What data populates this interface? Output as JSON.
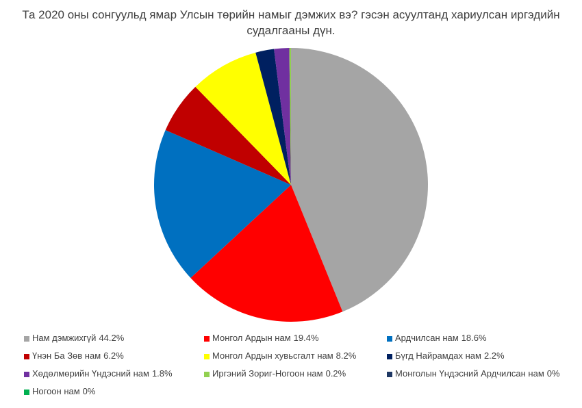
{
  "chart_data": {
    "type": "pie",
    "title": "Та 2020 оны сонгуульд ямар Улсын төрийн намыг дэмжих вэ? гэсэн асуултанд хариулсан иргэдийн судалгааны дүн.",
    "categories": [
      "Нам дэмжихгүй",
      "Монгол Ардын нам",
      "Ардчилсан нам",
      "Үнэн Ба Зөв нам",
      "Монгол Ардын хувьсгалт нам",
      "Бүгд Найрамдах нам",
      "Хөдөлмөрийн Үндэсний нам",
      "Иргэний Зориг-Ногоон нам",
      "Монголын Үндэсний Ардчилсан нам",
      "Ногоон нам"
    ],
    "values": [
      44.2,
      19.4,
      18.6,
      6.2,
      8.2,
      2.2,
      1.8,
      0.2,
      0,
      0
    ],
    "value_labels": [
      "44.2%",
      "19.4%",
      "18.6%",
      "6.2%",
      "8.2%",
      "2.2%",
      "1.8%",
      "0.2%",
      "0%",
      "0%"
    ],
    "colors": [
      "#a5a5a5",
      "#ff0000",
      "#0070c0",
      "#c00000",
      "#ffff00",
      "#002060",
      "#7030a0",
      "#92d050",
      "#1f3864",
      "#00b050"
    ],
    "legend": "bottom"
  }
}
